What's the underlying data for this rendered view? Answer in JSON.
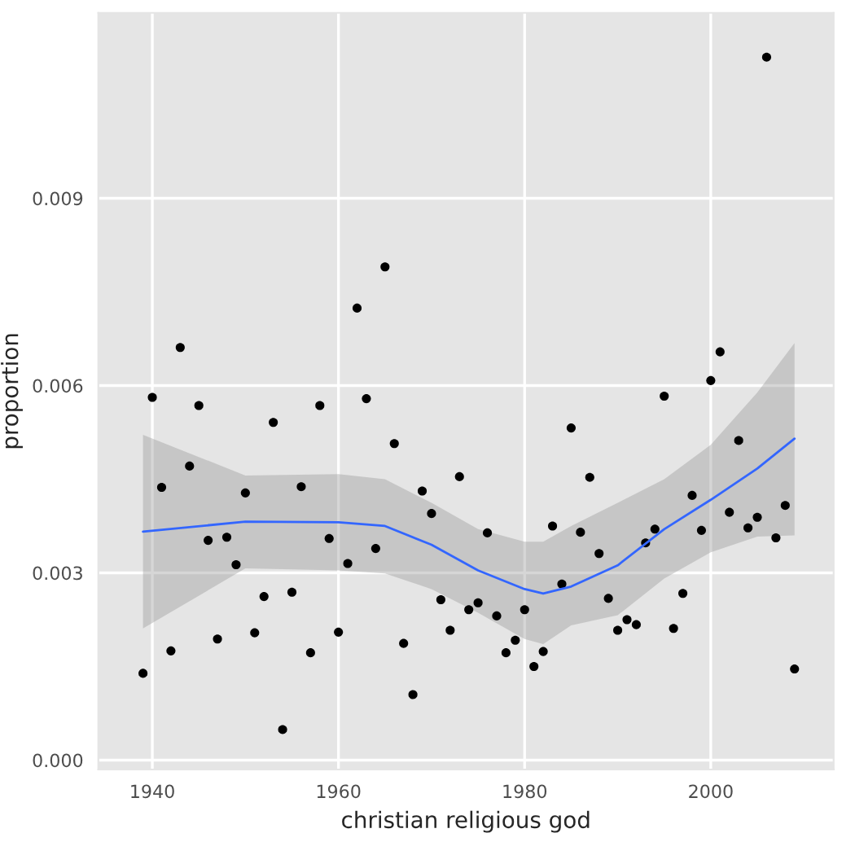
{
  "chart_data": {
    "type": "scatter",
    "xlabel": "christian religious god",
    "ylabel": "proportion",
    "xlim": [
      1934.2,
      2013.2
    ],
    "ylim": [
      -0.00015,
      0.01197
    ],
    "xticks": [
      1940,
      1960,
      1980,
      2000
    ],
    "yticks": [
      {
        "value": 0,
        "label": "0.000"
      },
      {
        "value": 0.003,
        "label": "0.003"
      },
      {
        "value": 0.006,
        "label": "0.006"
      },
      {
        "value": 0.009,
        "label": "0.009"
      }
    ],
    "grid": true,
    "legend": false,
    "series": [
      {
        "color": "#000000",
        "marker": "circle",
        "x": [
          1939,
          1940,
          1941,
          1942,
          1943,
          1944,
          1945,
          1946,
          1947,
          1948,
          1949,
          1950,
          1951,
          1952,
          1953,
          1954,
          1955,
          1956,
          1957,
          1958,
          1959,
          1960,
          1961,
          1962,
          1963,
          1964,
          1965,
          1966,
          1967,
          1968,
          1969,
          1970,
          1971,
          1972,
          1973,
          1974,
          1975,
          1976,
          1977,
          1978,
          1979,
          1980,
          1981,
          1982,
          1983,
          1984,
          1985,
          1986,
          1987,
          1988,
          1989,
          1990,
          1991,
          1992,
          1993,
          1994,
          1995,
          1996,
          1997,
          1998,
          1999,
          2000,
          2001,
          2002,
          2003,
          2004,
          2005,
          2006,
          2007,
          2008,
          2009
        ],
        "values": [
          0.00139,
          0.00581,
          0.00437,
          0.00175,
          0.00661,
          0.00471,
          0.00568,
          0.00352,
          0.00194,
          0.00357,
          0.00313,
          0.00428,
          0.00204,
          0.00262,
          0.00541,
          0.00049,
          0.00269,
          0.00438,
          0.00172,
          0.00568,
          0.00355,
          0.00205,
          0.00315,
          0.00724,
          0.00579,
          0.00339,
          0.0079,
          0.00507,
          0.00187,
          0.00105,
          0.00431,
          0.00395,
          0.00257,
          0.00208,
          0.00454,
          0.00241,
          0.00252,
          0.00364,
          0.00231,
          0.00172,
          0.00192,
          0.00241,
          0.0015,
          0.00174,
          0.00375,
          0.00282,
          0.00532,
          0.00365,
          0.00453,
          0.00331,
          0.00259,
          0.00208,
          0.00225,
          0.00217,
          0.00348,
          0.0037,
          0.00583,
          0.00211,
          0.00267,
          0.00424,
          0.00368,
          0.00608,
          0.00654,
          0.00397,
          0.00512,
          0.00372,
          0.00389,
          0.01126,
          0.00356,
          0.00408,
          0.00146
        ]
      },
      {
        "type": "line",
        "color": "#3366ff",
        "line_style": "solid",
        "x": [
          1939,
          1950,
          1960,
          1965,
          1970,
          1975,
          1980,
          1982,
          1985,
          1990,
          1995,
          2000,
          2005,
          2009
        ],
        "values": [
          0.00366,
          0.00382,
          0.00381,
          0.00375,
          0.00345,
          0.00304,
          0.00274,
          0.00267,
          0.00278,
          0.00312,
          0.0037,
          0.00417,
          0.00467,
          0.00515
        ],
        "lower": [
          0.00211,
          0.00307,
          0.00304,
          0.00299,
          0.00274,
          0.00236,
          0.00194,
          0.00186,
          0.00216,
          0.00232,
          0.00291,
          0.00333,
          0.00358,
          0.0036
        ],
        "upper": [
          0.00521,
          0.00456,
          0.00458,
          0.0045,
          0.00412,
          0.0037,
          0.0035,
          0.0035,
          0.00375,
          0.00412,
          0.0045,
          0.00505,
          0.00589,
          0.00668
        ]
      }
    ]
  }
}
